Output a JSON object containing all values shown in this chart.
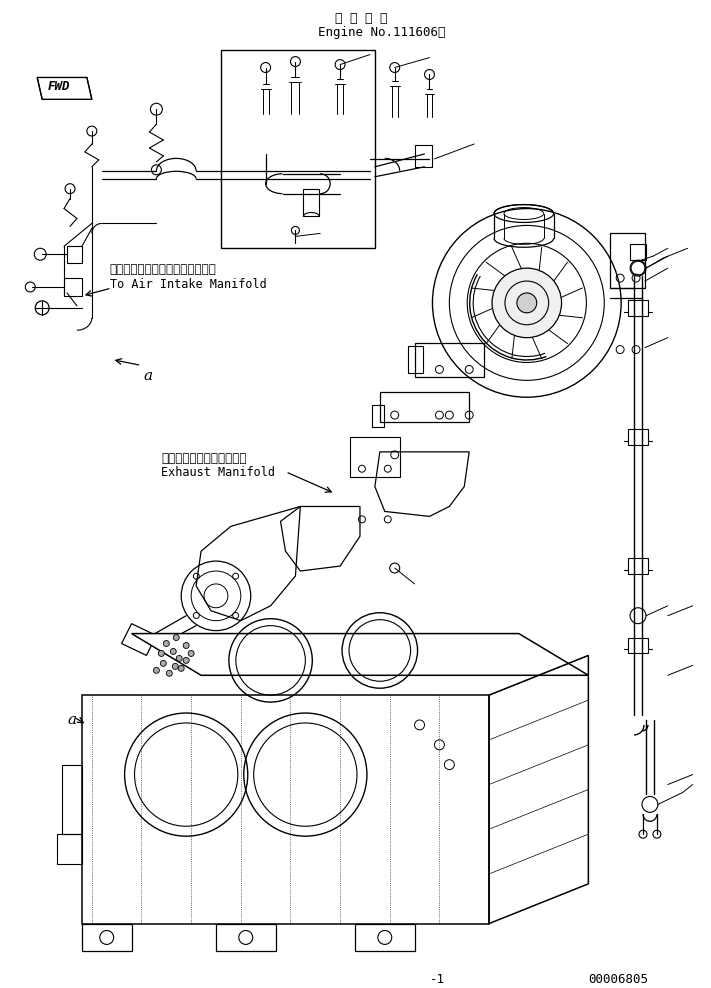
{
  "title_jp": "適 用 号 機",
  "title_en": "Engine No.111606～",
  "label1_jp": "エアーインテークマニホールドへ",
  "label1_en": "To Air Intake Manifold",
  "label2_jp": "エキゾーストマニホールド",
  "label2_en": "Exhaust Manifold",
  "fwd_label": "FWD",
  "part_number": "00006805",
  "dash_label": "-1",
  "letter_a1": "a",
  "letter_a2": "a",
  "bg_color": "#ffffff",
  "line_color": "#000000",
  "font_size_title": 9,
  "font_size_label": 8,
  "font_size_en": 8,
  "font_size_small": 7
}
